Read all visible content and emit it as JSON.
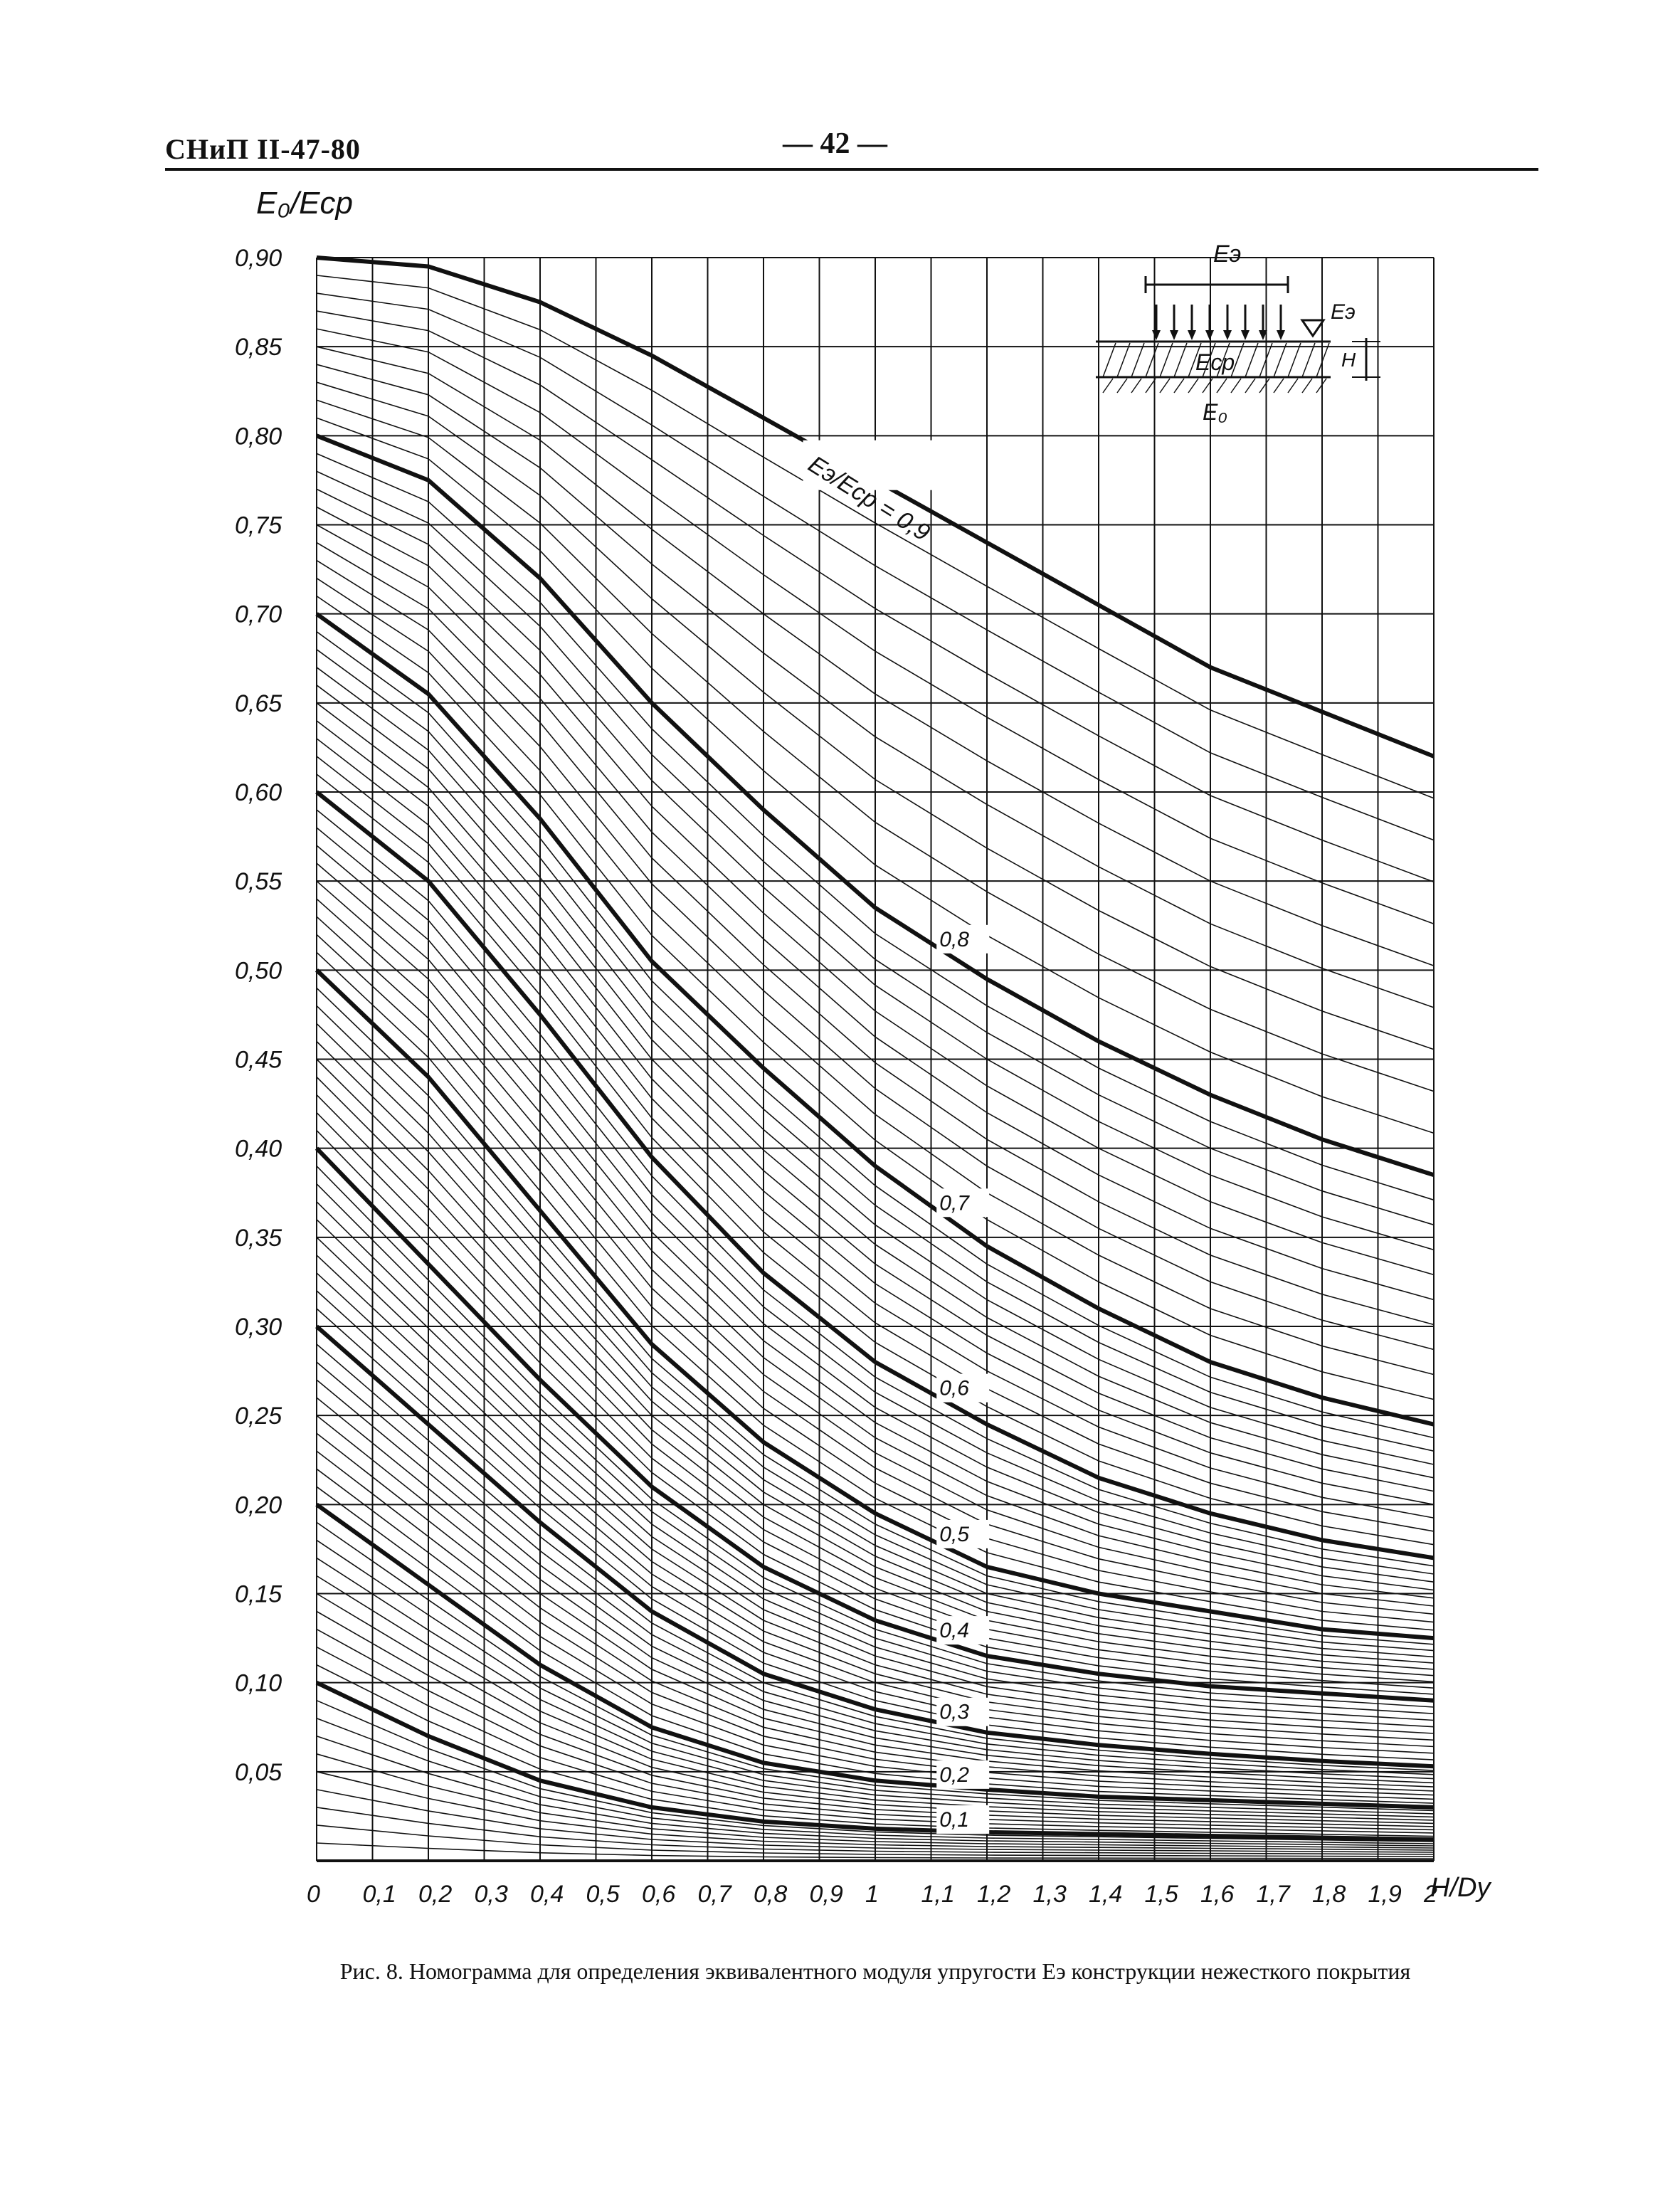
{
  "header": {
    "doc_code": "СНиП II-47-80",
    "page_number": "— 42 —"
  },
  "chart_data": {
    "type": "line",
    "title": "",
    "ylabel": "E₀/Eср",
    "xlabel": "H/Dу",
    "xlim": [
      0,
      2.0
    ],
    "ylim": [
      0,
      0.9
    ],
    "grid": true,
    "x_ticks": [
      "0",
      "0,1",
      "0,2",
      "0,3",
      "0,4",
      "0,5",
      "0,6",
      "0,7",
      "0,8",
      "0,9",
      "1",
      "1,1",
      "1,2",
      "1,3",
      "1,4",
      "1,5",
      "1,6",
      "1,7",
      "1,8",
      "1,9",
      "2"
    ],
    "y_ticks": [
      "0,05",
      "0,10",
      "0,15",
      "0,20",
      "0,25",
      "0,30",
      "0,35",
      "0,40",
      "0,45",
      "0,50",
      "0,55",
      "0,60",
      "0,65",
      "0,70",
      "0,75",
      "0,80",
      "0,85",
      "0,90"
    ],
    "series": [
      {
        "name": "Eэ/Eср = 0,9",
        "x": [
          0,
          0.2,
          0.4,
          0.6,
          0.8,
          1.0,
          1.2,
          1.4,
          1.6,
          1.8,
          2.0
        ],
        "y": [
          0.9,
          0.895,
          0.875,
          0.845,
          0.81,
          0.775,
          0.74,
          0.705,
          0.67,
          0.645,
          0.62
        ]
      },
      {
        "name": "0,8",
        "x": [
          0,
          0.2,
          0.4,
          0.6,
          0.8,
          1.0,
          1.2,
          1.4,
          1.6,
          1.8,
          2.0
        ],
        "y": [
          0.8,
          0.775,
          0.72,
          0.65,
          0.59,
          0.535,
          0.495,
          0.46,
          0.43,
          0.405,
          0.385
        ]
      },
      {
        "name": "0,7",
        "x": [
          0,
          0.2,
          0.4,
          0.6,
          0.8,
          1.0,
          1.2,
          1.4,
          1.6,
          1.8,
          2.0
        ],
        "y": [
          0.7,
          0.655,
          0.585,
          0.505,
          0.445,
          0.39,
          0.345,
          0.31,
          0.28,
          0.26,
          0.245
        ]
      },
      {
        "name": "0,6",
        "x": [
          0,
          0.2,
          0.4,
          0.6,
          0.8,
          1.0,
          1.2,
          1.4,
          1.6,
          1.8,
          2.0
        ],
        "y": [
          0.6,
          0.55,
          0.475,
          0.395,
          0.33,
          0.28,
          0.245,
          0.215,
          0.195,
          0.18,
          0.17
        ]
      },
      {
        "name": "0,5",
        "x": [
          0,
          0.2,
          0.4,
          0.6,
          0.8,
          1.0,
          1.2,
          1.4,
          1.6,
          1.8,
          2.0
        ],
        "y": [
          0.5,
          0.44,
          0.365,
          0.29,
          0.235,
          0.195,
          0.165,
          0.15,
          0.14,
          0.13,
          0.125
        ]
      },
      {
        "name": "0,4",
        "x": [
          0,
          0.2,
          0.4,
          0.6,
          0.8,
          1.0,
          1.2,
          1.4,
          1.6,
          1.8,
          2.0
        ],
        "y": [
          0.4,
          0.335,
          0.27,
          0.21,
          0.165,
          0.135,
          0.115,
          0.105,
          0.098,
          0.094,
          0.09
        ]
      },
      {
        "name": "0,3",
        "x": [
          0,
          0.2,
          0.4,
          0.6,
          0.8,
          1.0,
          1.2,
          1.4,
          1.6,
          1.8,
          2.0
        ],
        "y": [
          0.3,
          0.245,
          0.19,
          0.14,
          0.105,
          0.085,
          0.072,
          0.065,
          0.06,
          0.056,
          0.053
        ]
      },
      {
        "name": "0,2",
        "x": [
          0,
          0.2,
          0.4,
          0.6,
          0.8,
          1.0,
          1.2,
          1.4,
          1.6,
          1.8,
          2.0
        ],
        "y": [
          0.2,
          0.155,
          0.11,
          0.075,
          0.055,
          0.045,
          0.04,
          0.036,
          0.034,
          0.032,
          0.03
        ]
      },
      {
        "name": "0,1",
        "x": [
          0,
          0.2,
          0.4,
          0.6,
          0.8,
          1.0,
          1.2,
          1.4,
          1.6,
          1.8,
          2.0
        ],
        "y": [
          0.1,
          0.07,
          0.045,
          0.03,
          0.022,
          0.018,
          0.016,
          0.015,
          0.014,
          0.013,
          0.012
        ]
      }
    ],
    "annotations": [
      "Eэ/Eср = 0,9",
      "0,8",
      "0,7",
      "0,6",
      "0,5",
      "0,4",
      "0,3",
      "0,2",
      "0,1"
    ]
  },
  "inset": {
    "top_label": "Eэ",
    "marker_label": "Eэ",
    "layer_label": "Eср",
    "base_label": "E₀",
    "thickness_label": "H"
  },
  "caption": "Рис. 8. Номограмма для определения эквивалентного модуля упругости Eэ конструкции нежесткого покрытия"
}
